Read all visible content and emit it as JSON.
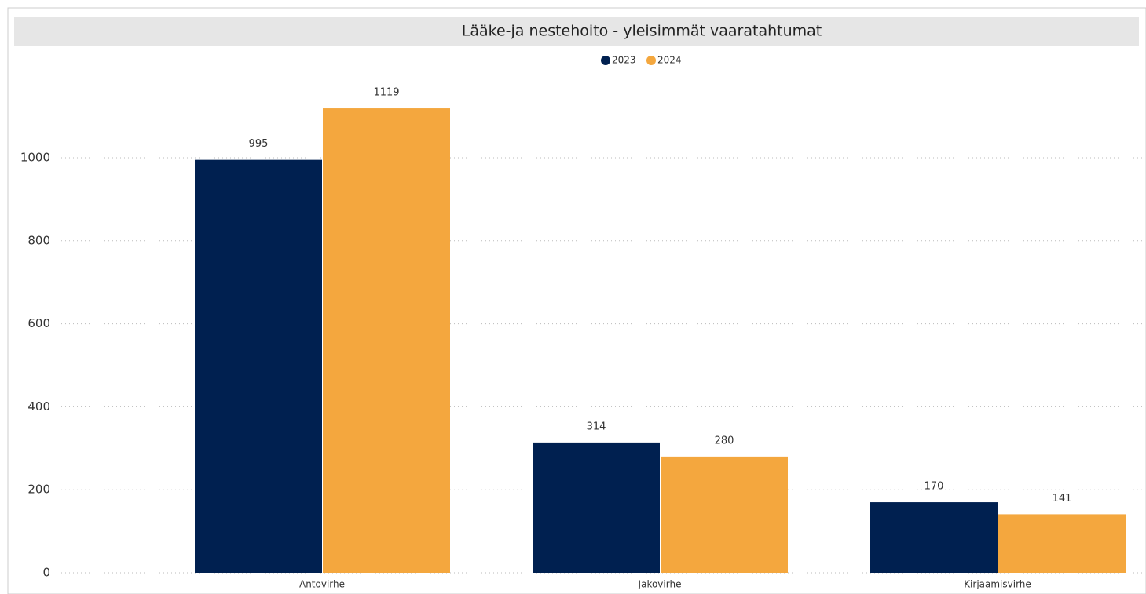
{
  "chart_data": {
    "type": "bar",
    "title": "Lääke-ja nestehoito - yleisimmät vaaratahtumat",
    "categories": [
      "Antovirhe",
      "Jakovirhe",
      "Kirjaamisvirhe"
    ],
    "series": [
      {
        "name": "2023",
        "color": "#002050",
        "values": [
          995,
          314,
          170
        ]
      },
      {
        "name": "2024",
        "color": "#f4a73e",
        "values": [
          1119,
          280,
          141
        ]
      }
    ],
    "ylim": [
      0,
      1200
    ],
    "yticks": [
      0,
      200,
      400,
      600,
      800,
      1000
    ],
    "grid": true
  }
}
